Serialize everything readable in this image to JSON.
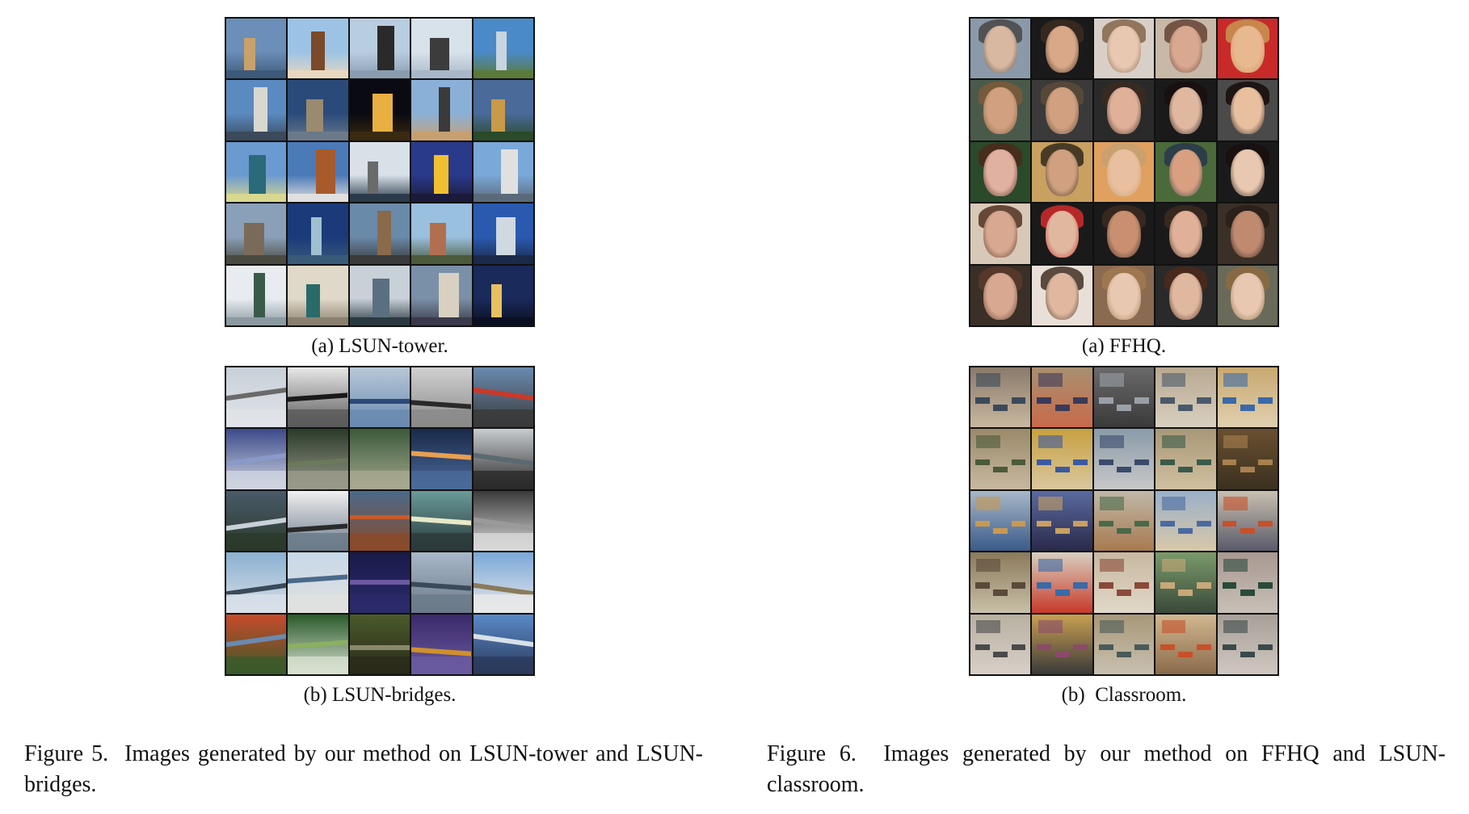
{
  "figures": [
    {
      "id": "fig5",
      "subfigures": [
        {
          "caption": "(a) LSUN-tower.",
          "tiles": [
            [
              "#6b8fb8",
              "#c9a16a",
              "#3d5a7a"
            ],
            [
              "#9cc3e6",
              "#7a4a2a",
              "#e8d8c0"
            ],
            [
              "#b9cde0",
              "#2a2a2a",
              "#8a9db0"
            ],
            [
              "#d8e2ea",
              "#3c3c3c",
              "#a8b8c8"
            ],
            [
              "#4a8ac8",
              "#c8d4e0",
              "#5a7a3a"
            ],
            [
              "#5a8ac0",
              "#d8d8d0",
              "#3a4a5a"
            ],
            [
              "#2a4a7a",
              "#9a8a70",
              "#6a7a8a"
            ],
            [
              "#0a0a12",
              "#e8b040",
              "#3a2a10"
            ],
            [
              "#8ab0d8",
              "#3a3a3a",
              "#c8a070"
            ],
            [
              "#4a6a9a",
              "#c89a4a",
              "#2a4a2a"
            ],
            [
              "#6a9ad0",
              "#2a6a7a",
              "#d8d890"
            ],
            [
              "#4a7ab8",
              "#a85a2a",
              "#e0e0e0"
            ],
            [
              "#d8e0e8",
              "#6a6a6a",
              "#2a3a4a"
            ],
            [
              "#2a3a8a",
              "#f0c030",
              "#1a1a3a"
            ],
            [
              "#7aa8d8",
              "#e0e0e0",
              "#5a6a7a"
            ],
            [
              "#8aa0b8",
              "#7a6a5a",
              "#4a4a40"
            ],
            [
              "#1a3a7a",
              "#a0c0d0",
              "#3a5a7a"
            ],
            [
              "#6a8aaa",
              "#8a6a4a",
              "#3a3a3a"
            ],
            [
              "#9ac0e0",
              "#b07050",
              "#4a5a3a"
            ],
            [
              "#2a5ab0",
              "#d0d8e0",
              "#1a2a4a"
            ],
            [
              "#e8ecf0",
              "#3a5a4a",
              "#8a9aa0"
            ],
            [
              "#e0d8c8",
              "#2a6a6a",
              "#8a8070"
            ],
            [
              "#c8d0d8",
              "#5a7080",
              "#2a3a40"
            ],
            [
              "#7a90a8",
              "#d8d0c0",
              "#3a3a4a"
            ],
            [
              "#1a2a5a",
              "#e8c060",
              "#0a1020"
            ]
          ]
        },
        {
          "caption": "(b) LSUN-bridges.",
          "tiles": [
            [
              "#c8d0d8",
              "#6a6a6a",
              "#e0e4e8"
            ],
            [
              "#e8e8e8",
              "#1a1a1a",
              "#5a5a5a"
            ],
            [
              "#b8c8d8",
              "#2a4a7a",
              "#6a8ab0"
            ],
            [
              "#d0d0d0",
              "#2a2a2a",
              "#8a8a8a"
            ],
            [
              "#6a8ab0",
              "#c83a2a",
              "#3a3a3a"
            ],
            [
              "#3a4a8a",
              "#8a9ac8",
              "#d0d4e0"
            ],
            [
              "#2a3a2a",
              "#6a7a5a",
              "#9a9a8a"
            ],
            [
              "#3a5a3a",
              "#7a8a6a",
              "#a8a890"
            ],
            [
              "#1a2a4a",
              "#e8a050",
              "#4a6a9a"
            ],
            [
              "#c8ccd0",
              "#5a6a70",
              "#2a2a2a"
            ],
            [
              "#4a5a6a",
              "#c8d0d8",
              "#2a3a2a"
            ],
            [
              "#f0f0f0",
              "#2a2a2a",
              "#6a7a8a"
            ],
            [
              "#4a6a8a",
              "#c85a2a",
              "#8a4a2a"
            ],
            [
              "#6a9a9a",
              "#e8e8c8",
              "#2a3a3a"
            ],
            [
              "#3a3a3a",
              "#9a9a9a",
              "#d8d8d8"
            ],
            [
              "#8ab0d0",
              "#3a4a5a",
              "#d8e0e8"
            ],
            [
              "#c8d8e8",
              "#4a6a8a",
              "#e0e0e0"
            ],
            [
              "#1a1a4a",
              "#6a5aa0",
              "#2a2a6a"
            ],
            [
              "#a8b8c8",
              "#3a4a5a",
              "#6a7a8a"
            ],
            [
              "#7aa8d8",
              "#8a7a5a",
              "#e8e8e8"
            ],
            [
              "#c84a2a",
              "#6a8ab0",
              "#3a5a2a"
            ],
            [
              "#2a5a2a",
              "#8ab060",
              "#d8e0d0"
            ],
            [
              "#4a5a2a",
              "#8a8a6a",
              "#2a2a1a"
            ],
            [
              "#3a2a6a",
              "#d0902a",
              "#6a5aa0"
            ],
            [
              "#5a8ac8",
              "#d8e0e8",
              "#2a3a5a"
            ]
          ]
        }
      ],
      "label": "Figure 5.",
      "caption_text": "Images generated by our method on LSUN-tower and LSUN-bridges."
    },
    {
      "id": "fig6",
      "subfigures": [
        {
          "caption": "(a) FFHQ.",
          "tiles": [
            [
              "#8a9aaa",
              "#d8b8a0",
              "#4a4a4a"
            ],
            [
              "#1a1a1a",
              "#d8a888",
              "#3a2a20"
            ],
            [
              "#d8d0c8",
              "#e8c8b0",
              "#8a6a50"
            ],
            [
              "#c8b8a8",
              "#d8a890",
              "#6a4a3a"
            ],
            [
              "#c82a2a",
              "#e8b890",
              "#c89050"
            ],
            [
              "#4a5a4a",
              "#d0a080",
              "#7a5a3a"
            ],
            [
              "#3a3a3a",
              "#d0a080",
              "#5a4a3a"
            ],
            [
              "#2a2a2a",
              "#e0b098",
              "#3a2a20"
            ],
            [
              "#1a1a1a",
              "#e0b8a0",
              "#1a1010"
            ],
            [
              "#4a4a4a",
              "#e8c0a0",
              "#1a1010"
            ],
            [
              "#2a4a2a",
              "#e0b0a0",
              "#4a2a1a"
            ],
            [
              "#c8a060",
              "#d0a080",
              "#3a3020"
            ],
            [
              "#e0a060",
              "#e8c0a0",
              "#c8a070"
            ],
            [
              "#4a6a3a",
              "#d8a080",
              "#2a3a4a"
            ],
            [
              "#1a1a1a",
              "#e8c8b0",
              "#1a1010"
            ],
            [
              "#d8c8b8",
              "#d8a890",
              "#5a3a2a"
            ],
            [
              "#1a1a1a",
              "#e0b8a0",
              "#c82a2a"
            ],
            [
              "#1a1a1a",
              "#c89070",
              "#3a2a20"
            ],
            [
              "#1a1a1a",
              "#e0b098",
              "#3a2a20"
            ],
            [
              "#3a3028",
              "#c08a70",
              "#2a2018"
            ],
            [
              "#3a3028",
              "#d8a890",
              "#5a3a2a"
            ],
            [
              "#e8e0d8",
              "#e0b8a0",
              "#4a3a30"
            ],
            [
              "#8a6a50",
              "#e8c8b0",
              "#a07850"
            ],
            [
              "#2a2a2a",
              "#e0b8a0",
              "#4a2a1a"
            ],
            [
              "#6a6a5a",
              "#e8c8b0",
              "#8a6a40"
            ]
          ]
        },
        {
          "caption": "(b)  Classroom.",
          "tiles": [
            [
              "#8a7a6a",
              "#3a4a5a",
              "#c8b8a0"
            ],
            [
              "#a89070",
              "#3a3a5a",
              "#c86a4a"
            ],
            [
              "#6a6a6a",
              "#9aa0a8",
              "#3a3a3a"
            ],
            [
              "#b8a890",
              "#4a5a6a",
              "#d8d0c0"
            ],
            [
              "#c8a870",
              "#3a6aa8",
              "#e0d0b0"
            ],
            [
              "#9a8a6a",
              "#4a5a3a",
              "#c8b8a0"
            ],
            [
              "#c8a040",
              "#3a5aa0",
              "#d8c8a0"
            ],
            [
              "#8a9aa8",
              "#3a4a6a",
              "#c8c8c8"
            ],
            [
              "#a89878",
              "#3a5a4a",
              "#d0c0a0"
            ],
            [
              "#6a5030",
              "#a88050",
              "#3a3020"
            ],
            [
              "#a8b8c8",
              "#c89a50",
              "#3a5a8a"
            ],
            [
              "#5a6aa0",
              "#c8a060",
              "#2a2a4a"
            ],
            [
              "#c0b8a8",
              "#4a6a4a",
              "#a87a50"
            ],
            [
              "#9ab0c8",
              "#4a6aa0",
              "#d8c8a8"
            ],
            [
              "#c8c0b0",
              "#c8502a",
              "#5a5a6a"
            ],
            [
              "#8a7a5a",
              "#5a4a3a",
              "#c8c0a8"
            ],
            [
              "#d8d0c0",
              "#3a6aa8",
              "#c83a2a"
            ],
            [
              "#c8b8a0",
              "#8a4a3a",
              "#e0d8c8"
            ],
            [
              "#7a9a6a",
              "#c8a878",
              "#3a4a3a"
            ],
            [
              "#a89890",
              "#2a4a3a",
              "#c8c0b8"
            ],
            [
              "#b8b0a0",
              "#4a4a4a",
              "#d8d0c8"
            ],
            [
              "#c8a050",
              "#8a4a6a",
              "#3a3a3a"
            ],
            [
              "#a89878",
              "#4a5a5a",
              "#c8c0b0"
            ],
            [
              "#d0b890",
              "#c8502a",
              "#8a6a4a"
            ],
            [
              "#a8a098",
              "#3a4a4a",
              "#d0c8c0"
            ]
          ]
        }
      ],
      "label": "Figure 6.",
      "caption_text": "Images generated by our method on FFHQ and LSUN-classroom."
    }
  ]
}
